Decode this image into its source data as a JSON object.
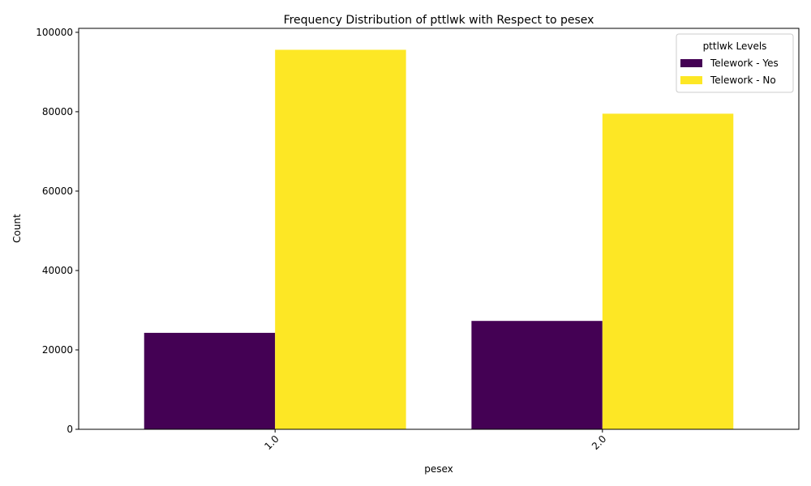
{
  "chart_data": {
    "type": "bar",
    "title": "Frequency Distribution of pttlwk with Respect to pesex",
    "xlabel": "pesex",
    "ylabel": "Count",
    "categories": [
      "1.0",
      "2.0"
    ],
    "series": [
      {
        "name": "Telework - Yes",
        "color": "#440154",
        "values": [
          24300,
          27300
        ]
      },
      {
        "name": "Telework - No",
        "color": "#fde725",
        "values": [
          95600,
          79500
        ]
      }
    ],
    "ylim": [
      0,
      101000
    ],
    "yticks": [
      0,
      20000,
      40000,
      60000,
      80000,
      100000
    ],
    "legend": {
      "title": "pttlwk Levels",
      "placement": "top-right"
    },
    "grid": false
  }
}
